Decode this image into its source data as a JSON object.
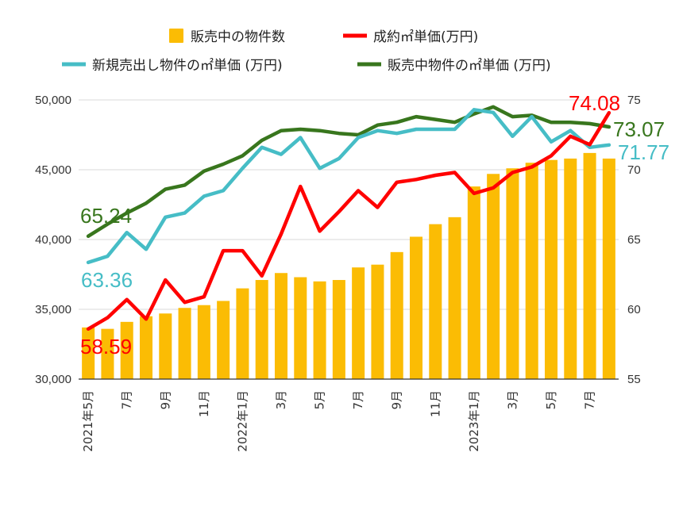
{
  "colors": {
    "bars": "#fbbc04",
    "contract": "#ff0000",
    "new_listing": "#46bdc6",
    "on_sale": "#38761d",
    "grid": "#d9d9d9",
    "axis": "#333333"
  },
  "chart_data": {
    "type": "bar",
    "title": "",
    "categories": [
      "2021年5月",
      "6月",
      "7月",
      "8月",
      "9月",
      "10月",
      "11月",
      "12月",
      "2022年1月",
      "2月",
      "3月",
      "4月",
      "5月",
      "6月",
      "7月",
      "8月",
      "9月",
      "10月",
      "11月",
      "12月",
      "2023年1月",
      "2月",
      "3月",
      "4月",
      "5月",
      "6月",
      "7月",
      "8月"
    ],
    "x_tick_labels": [
      "2021年5月",
      "",
      "7月",
      "",
      "9月",
      "",
      "11月",
      "",
      "2022年1月",
      "",
      "3月",
      "",
      "5月",
      "",
      "7月",
      "",
      "9月",
      "",
      "11月",
      "",
      "2023年1月",
      "",
      "3月",
      "",
      "5月",
      "",
      "7月",
      ""
    ],
    "left_axis": {
      "ylim": [
        30000,
        50000
      ],
      "ticks": [
        "30,000",
        "35,000",
        "40,000",
        "45,000",
        "50,000"
      ],
      "tick_values": [
        30000,
        35000,
        40000,
        45000,
        50000
      ]
    },
    "right_axis": {
      "ylim": [
        55,
        75
      ],
      "ticks": [
        "55",
        "60",
        "65",
        "70",
        "75"
      ],
      "tick_values": [
        55,
        60,
        65,
        70,
        75
      ]
    },
    "legend_placement": "top",
    "series": [
      {
        "name": "販売中の物件数",
        "type": "bar",
        "axis": "left",
        "values": [
          33700,
          33600,
          34100,
          34500,
          34700,
          35100,
          35300,
          35600,
          36500,
          37100,
          37600,
          37300,
          37000,
          37100,
          38000,
          38200,
          39100,
          40200,
          41100,
          41600,
          43800,
          44700,
          45100,
          45500,
          45700,
          45800,
          46200,
          45800
        ]
      },
      {
        "name": "成約㎡単価(万円)",
        "type": "line",
        "axis": "right",
        "values": [
          58.59,
          59.4,
          60.7,
          59.3,
          62.1,
          60.5,
          60.9,
          64.2,
          64.2,
          62.4,
          65.4,
          68.8,
          65.6,
          67.0,
          68.5,
          67.3,
          69.1,
          69.3,
          69.6,
          69.8,
          68.3,
          68.7,
          69.8,
          70.2,
          71.0,
          72.4,
          71.8,
          74.08
        ],
        "end_label": "74.08",
        "start_label": "58.59"
      },
      {
        "name": "新規売出し物件の㎡単価 (万円)",
        "type": "line",
        "axis": "right",
        "values": [
          63.36,
          63.8,
          65.5,
          64.3,
          66.6,
          66.9,
          68.1,
          68.5,
          70.1,
          71.6,
          71.1,
          72.3,
          70.1,
          70.8,
          72.3,
          72.8,
          72.6,
          72.9,
          72.9,
          72.9,
          74.3,
          74.1,
          72.4,
          73.8,
          72.0,
          72.8,
          71.6,
          71.77
        ],
        "end_label": "71.77",
        "start_label": "63.36"
      },
      {
        "name": "販売中物件の㎡単価 (万円)",
        "type": "line",
        "axis": "right",
        "values": [
          65.24,
          66.1,
          66.9,
          67.6,
          68.6,
          68.9,
          69.9,
          70.4,
          71.0,
          72.1,
          72.8,
          72.9,
          72.8,
          72.6,
          72.5,
          73.2,
          73.4,
          73.8,
          73.6,
          73.4,
          74.0,
          74.5,
          73.8,
          73.9,
          73.4,
          73.4,
          73.3,
          73.07
        ],
        "end_label": "73.07",
        "start_label": "65.24"
      }
    ]
  }
}
